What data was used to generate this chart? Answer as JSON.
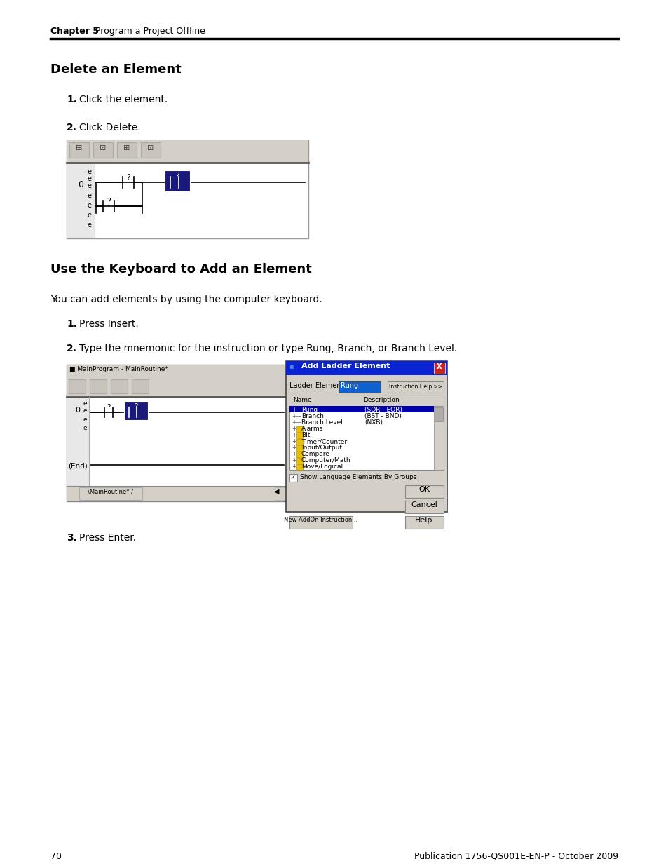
{
  "page_bg": "#ffffff",
  "chapter_label": "Chapter 5",
  "chapter_title": "   Program a Project Offline",
  "page_number": "70",
  "footer_text": "Publication 1756-QS001E-EN-P - October 2009",
  "section1_title": "Delete an Element",
  "s1_step1": "1.  Click the element.",
  "s1_step2_bold": "2.",
  "s1_step2_rest": "  Click Delete.",
  "section2_title": "Use the Keyboard to Add an Element",
  "section2_intro": "You can add elements by using the computer keyboard.",
  "s2_step1_bold": "1.",
  "s2_step1_rest": "  Press Insert.",
  "s2_step2_bold": "2.",
  "s2_step2_rest": "  Type the mnemonic for the instruction or type Rung, Branch, or Branch Level.",
  "s2_step3_bold": "3.",
  "s2_step3_rest": "  Press Enter."
}
